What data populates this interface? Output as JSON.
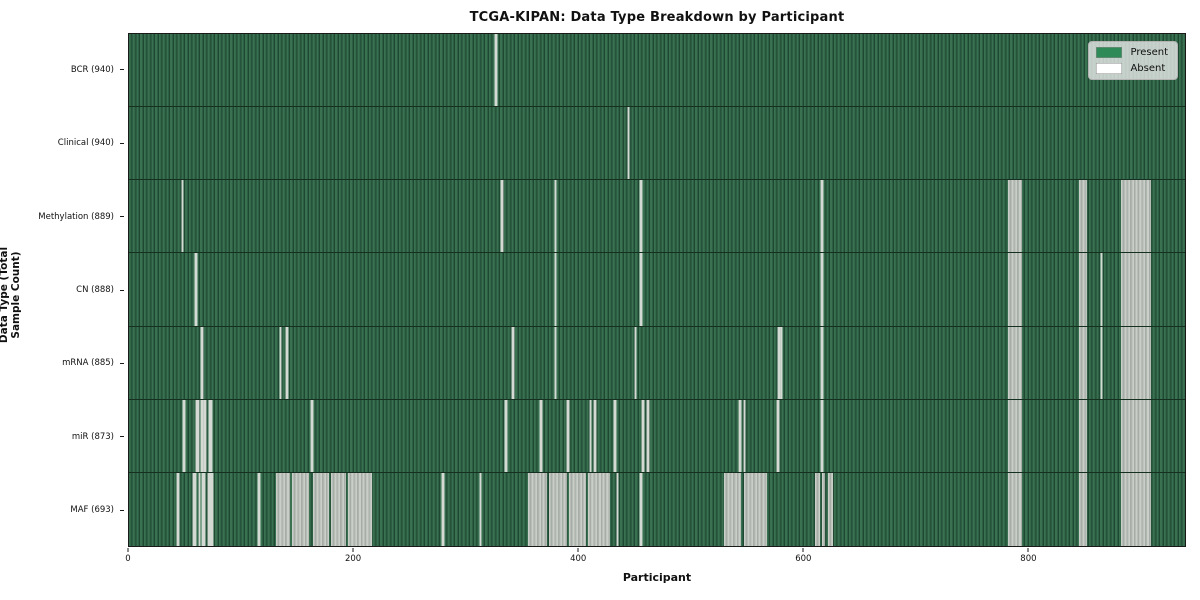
{
  "chart_data": {
    "type": "heatmap",
    "title": "TCGA-KIPAN: Data Type Breakdown by Participant",
    "xlabel": "Participant",
    "ylabel": "Data Type (Total Sample Count)",
    "x_max": 940,
    "x_ticks": [
      0,
      200,
      400,
      600,
      800
    ],
    "grid": "off",
    "legend_position": "upper right",
    "legend": [
      {
        "label": "Present",
        "color": "#2e8b57"
      },
      {
        "label": "Absent",
        "color": "#ffffff"
      }
    ],
    "present_color": "#2e8b57",
    "absent_color": "#ffffff",
    "rows": [
      {
        "label": "BCR (940)",
        "data_type": "BCR",
        "present_count": 940,
        "absent_ranges": [
          [
            326,
            327.5,
            "w"
          ]
        ]
      },
      {
        "label": "Clinical (940)",
        "data_type": "Clinical",
        "present_count": 940,
        "absent_ranges": [
          [
            444,
            445.5,
            "w"
          ]
        ]
      },
      {
        "label": "Methylation (889)",
        "data_type": "Methylation",
        "present_count": 889,
        "absent_ranges": [
          [
            47,
            48.5,
            "w"
          ],
          [
            331,
            332.5,
            "w"
          ],
          [
            379,
            380.5,
            "w"
          ],
          [
            455,
            456.5,
            "w"
          ],
          [
            616,
            617.5,
            "w"
          ],
          [
            782,
            795,
            "g"
          ],
          [
            846,
            853,
            "g"
          ],
          [
            883,
            910,
            "g"
          ]
        ]
      },
      {
        "label": "CN (888)",
        "data_type": "CN",
        "present_count": 888,
        "absent_ranges": [
          [
            59,
            60.5,
            "w"
          ],
          [
            379,
            380.5,
            "w"
          ],
          [
            455,
            456.5,
            "w"
          ],
          [
            616,
            617.5,
            "w"
          ],
          [
            865,
            866.5,
            "w"
          ],
          [
            782,
            795,
            "g"
          ],
          [
            846,
            853,
            "g"
          ],
          [
            883,
            910,
            "g"
          ]
        ]
      },
      {
        "label": "mRNA (885)",
        "data_type": "mRNA",
        "present_count": 885,
        "absent_ranges": [
          [
            64,
            65.5,
            "w"
          ],
          [
            134,
            135.5,
            "w"
          ],
          [
            140,
            141.5,
            "w"
          ],
          [
            341,
            342.5,
            "w"
          ],
          [
            379,
            380.5,
            "w"
          ],
          [
            450,
            451.5,
            "w"
          ],
          [
            578,
            579.2,
            "w"
          ],
          [
            580,
            581.2,
            "w"
          ],
          [
            616,
            617.5,
            "w"
          ],
          [
            865,
            866.5,
            "w"
          ],
          [
            782,
            795,
            "g"
          ],
          [
            846,
            853,
            "g"
          ],
          [
            883,
            910,
            "g"
          ]
        ]
      },
      {
        "label": "miR (873)",
        "data_type": "miR",
        "present_count": 873,
        "absent_ranges": [
          [
            48,
            49.5,
            "w"
          ],
          [
            60,
            62,
            "w"
          ],
          [
            64,
            65.5,
            "w"
          ],
          [
            67,
            68.5,
            "w"
          ],
          [
            71,
            73.5,
            "w"
          ],
          [
            162,
            163.5,
            "w"
          ],
          [
            335,
            336.5,
            "w"
          ],
          [
            366,
            367.5,
            "w"
          ],
          [
            390,
            391.5,
            "w"
          ],
          [
            410,
            411.5,
            "w"
          ],
          [
            414,
            415.5,
            "w"
          ],
          [
            432,
            433.5,
            "w"
          ],
          [
            457,
            458.5,
            "w"
          ],
          [
            461,
            462.5,
            "w"
          ],
          [
            543,
            544.5,
            "w"
          ],
          [
            547,
            548.5,
            "w"
          ],
          [
            577,
            578.5,
            "w"
          ],
          [
            616,
            617.5,
            "w"
          ],
          [
            782,
            795,
            "g"
          ],
          [
            846,
            853,
            "g"
          ],
          [
            883,
            910,
            "g"
          ]
        ]
      },
      {
        "label": "MAF (693)",
        "data_type": "MAF",
        "present_count": 693,
        "absent_ranges": [
          [
            43,
            44.5,
            "w"
          ],
          [
            57,
            59.5,
            "w"
          ],
          [
            62,
            63.5,
            "w"
          ],
          [
            65,
            67.5,
            "w"
          ],
          [
            70,
            74.5,
            "w"
          ],
          [
            115,
            116.5,
            "w"
          ],
          [
            131,
            143,
            "g"
          ],
          [
            145,
            160,
            "g"
          ],
          [
            164,
            178,
            "g"
          ],
          [
            180,
            193,
            "g"
          ],
          [
            195,
            216,
            "g"
          ],
          [
            279,
            280.5,
            "w"
          ],
          [
            312,
            313.5,
            "w"
          ],
          [
            355,
            372,
            "g"
          ],
          [
            374,
            390,
            "g"
          ],
          [
            392,
            407,
            "g"
          ],
          [
            409,
            428,
            "g"
          ],
          [
            434,
            435.5,
            "w"
          ],
          [
            455,
            456.5,
            "w"
          ],
          [
            530,
            545,
            "g"
          ],
          [
            547,
            568,
            "g"
          ],
          [
            611,
            615,
            "g"
          ],
          [
            617,
            620,
            "g"
          ],
          [
            622,
            627,
            "g"
          ],
          [
            782,
            795,
            "g"
          ],
          [
            846,
            853,
            "g"
          ],
          [
            883,
            910,
            "g"
          ]
        ]
      }
    ]
  }
}
